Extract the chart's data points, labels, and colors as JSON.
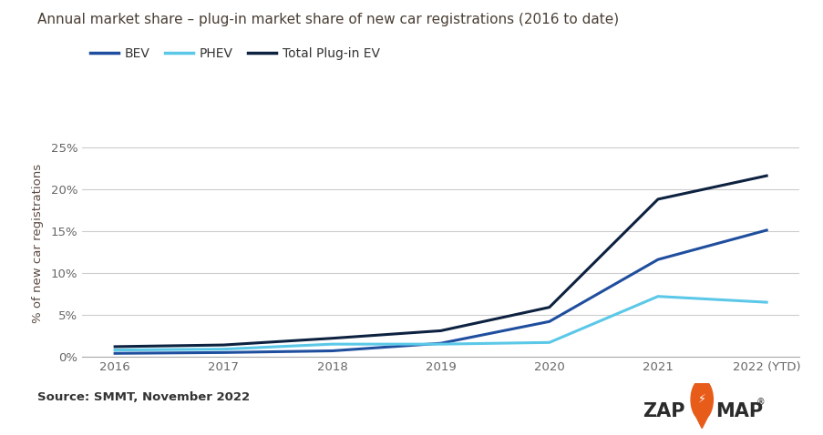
{
  "title": "Annual market share – plug-in market share of new car registrations (2016 to date)",
  "ylabel": "% of new car registrations",
  "source_text": "Source: SMMT, November 2022",
  "x_labels": [
    "2016",
    "2017",
    "2018",
    "2019",
    "2020",
    "2021",
    "2022 (YTD)"
  ],
  "bev": [
    0.4,
    0.5,
    0.7,
    1.6,
    4.2,
    11.6,
    15.1
  ],
  "phev": [
    0.8,
    0.9,
    1.5,
    1.5,
    1.7,
    7.2,
    6.5
  ],
  "total": [
    1.2,
    1.4,
    2.2,
    3.1,
    5.9,
    18.8,
    21.6
  ],
  "bev_color": "#1f4e9e",
  "phev_color": "#5bc8e8",
  "total_color": "#0d2240",
  "title_color": "#4a3f35",
  "label_color": "#5a4a42",
  "source_color": "#333333",
  "grid_color": "#cccccc",
  "bg_color": "#ffffff",
  "tick_color": "#666666",
  "yticks": [
    0,
    5,
    10,
    15,
    20,
    25
  ],
  "ylim": [
    0,
    27
  ],
  "linewidth": 2.2
}
